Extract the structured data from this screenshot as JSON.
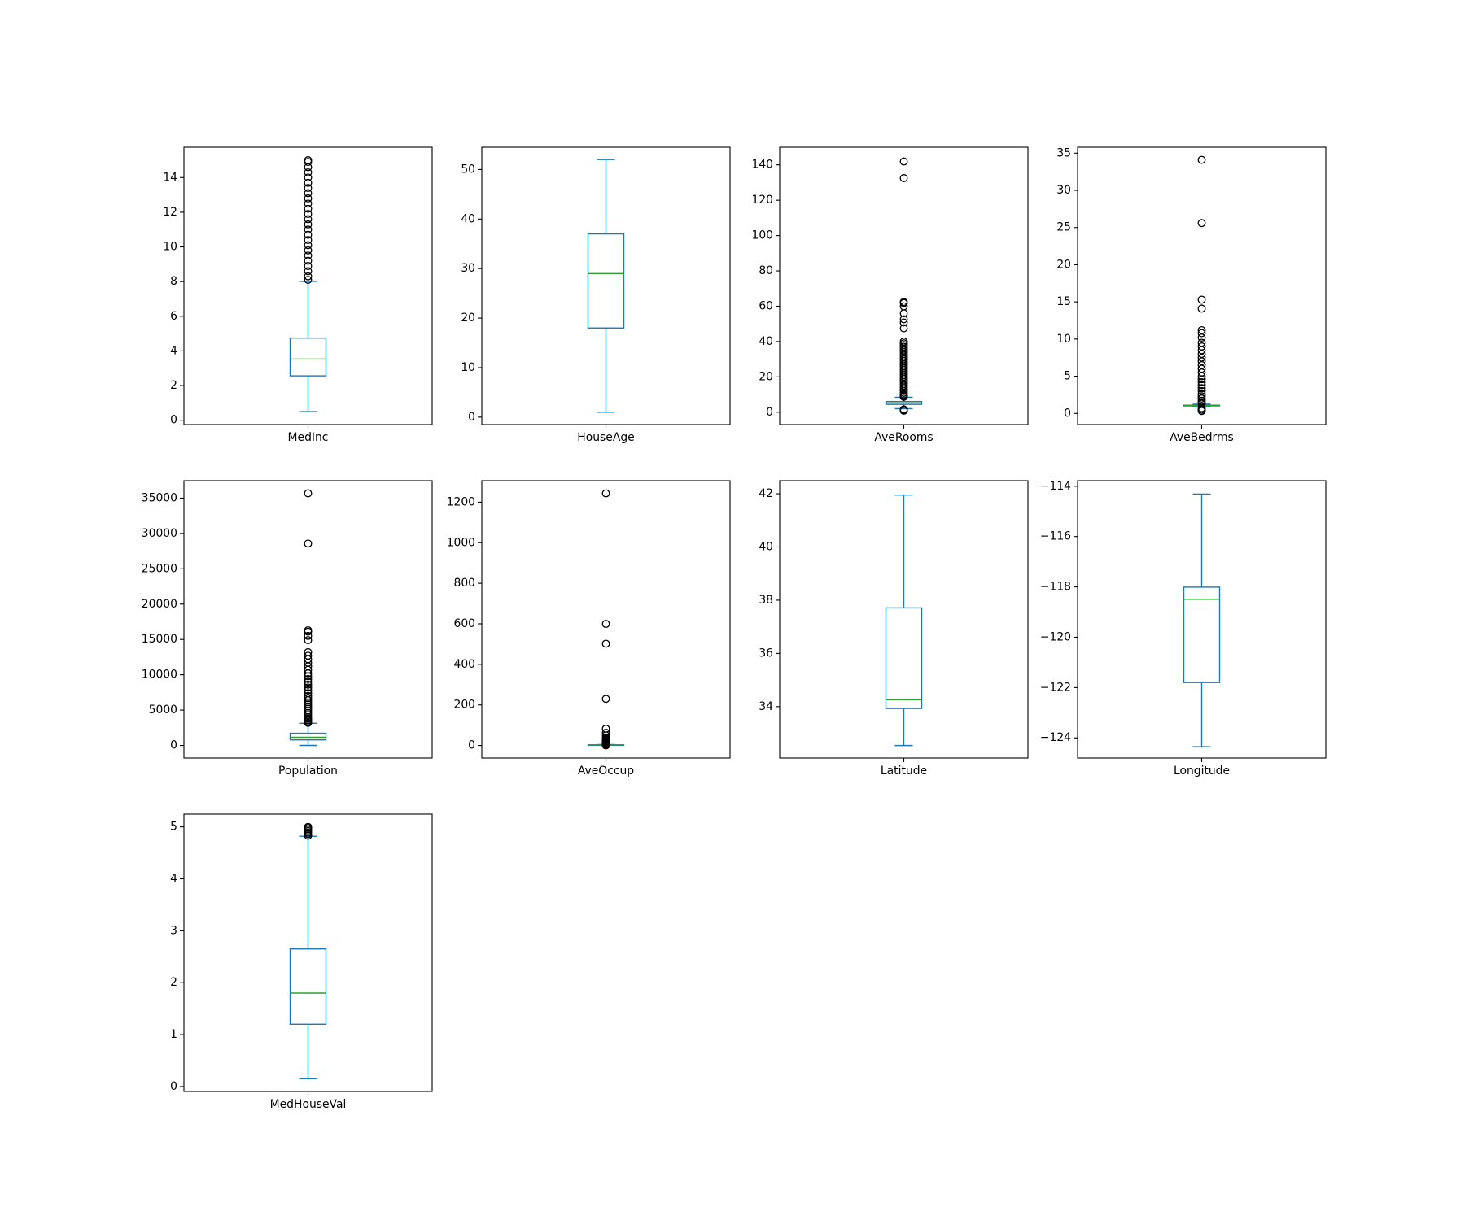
{
  "figure": {
    "background": "#ffffff"
  },
  "style": {
    "box_color": "#1f77b4",
    "median_color": "#2ca02c",
    "flier_color": "#000000"
  },
  "chart_data": [
    {
      "type": "box",
      "xlabel": "MedInc",
      "ylim": [
        -0.25,
        15.75
      ],
      "yticks": [
        0,
        2,
        4,
        6,
        8,
        10,
        12,
        14
      ],
      "yticklabels": [
        "0",
        "2",
        "4",
        "6",
        "8",
        "10",
        "12",
        "14"
      ],
      "box": {
        "whislo": 0.5,
        "q1": 2.56,
        "med": 3.53,
        "q3": 4.74,
        "whishi": 8.01
      },
      "fliers": [
        8.1,
        8.3,
        8.6,
        8.9,
        9.2,
        9.5,
        9.8,
        10.1,
        10.4,
        10.7,
        11.0,
        11.3,
        11.6,
        11.9,
        12.2,
        12.5,
        12.8,
        13.1,
        13.4,
        13.7,
        14.0,
        14.3,
        14.6,
        14.9,
        15.0
      ]
    },
    {
      "type": "box",
      "xlabel": "HouseAge",
      "ylim": [
        -1.5,
        54.5
      ],
      "yticks": [
        0,
        10,
        20,
        30,
        40,
        50
      ],
      "yticklabels": [
        "0",
        "10",
        "20",
        "30",
        "40",
        "50"
      ],
      "box": {
        "whislo": 1,
        "q1": 18,
        "med": 29,
        "q3": 37,
        "whishi": 52
      },
      "fliers": []
    },
    {
      "type": "box",
      "xlabel": "AveRooms",
      "ylim": [
        -7,
        150
      ],
      "yticks": [
        0,
        20,
        40,
        60,
        80,
        100,
        120,
        140
      ],
      "yticklabels": [
        "0",
        "20",
        "40",
        "60",
        "80",
        "100",
        "120",
        "140"
      ],
      "box": {
        "whislo": 2.0,
        "q1": 4.44,
        "med": 5.23,
        "q3": 6.05,
        "whishi": 8.45
      },
      "fliers": [
        0.85,
        1.1,
        1.3,
        1.6,
        8.7,
        9.0,
        9.5,
        10,
        11,
        12,
        13,
        14,
        15,
        16,
        17,
        18,
        19,
        20,
        21,
        22,
        23,
        24,
        25,
        26,
        27,
        28,
        29,
        30,
        31,
        32,
        33,
        34,
        35,
        36,
        37,
        38,
        39,
        40,
        47.5,
        50.8,
        52.6,
        56,
        59.9,
        61.8,
        62.4,
        132.5,
        141.9
      ]
    },
    {
      "type": "box",
      "xlabel": "AveBedrms",
      "ylim": [
        -1.5,
        35.8
      ],
      "yticks": [
        0,
        5,
        10,
        15,
        20,
        25,
        30,
        35
      ],
      "yticklabels": [
        "0",
        "5",
        "10",
        "15",
        "20",
        "25",
        "30",
        "35"
      ],
      "box": {
        "whislo": 0.87,
        "q1": 1.01,
        "med": 1.05,
        "q3": 1.1,
        "whishi": 1.24
      },
      "fliers": [
        0.33,
        0.5,
        0.7,
        1.3,
        1.5,
        1.7,
        2.0,
        2.3,
        2.6,
        3.0,
        3.4,
        3.8,
        4.2,
        4.6,
        5.0,
        5.5,
        6.0,
        6.5,
        7.0,
        7.5,
        8.0,
        8.5,
        9.0,
        9.5,
        10.2,
        10.8,
        11.2,
        14.1,
        15.3,
        25.6,
        34.1
      ]
    },
    {
      "type": "box",
      "xlabel": "Population",
      "ylim": [
        -1780,
        37465
      ],
      "yticks": [
        0,
        5000,
        10000,
        15000,
        20000,
        25000,
        30000,
        35000
      ],
      "yticklabels": [
        "0",
        "5000",
        "10000",
        "15000",
        "20000",
        "25000",
        "30000",
        "35000"
      ],
      "box": {
        "whislo": 3,
        "q1": 787,
        "med": 1166,
        "q3": 1725,
        "whishi": 3132
      },
      "fliers": [
        3200,
        3400,
        3600,
        3800,
        4000,
        4300,
        4600,
        4900,
        5200,
        5500,
        5800,
        6100,
        6400,
        6700,
        7000,
        7400,
        7800,
        8200,
        8600,
        9000,
        9400,
        9800,
        10200,
        10700,
        11200,
        11700,
        12200,
        12700,
        13200,
        14900,
        15500,
        16100,
        16300,
        28566,
        35682
      ]
    },
    {
      "type": "box",
      "xlabel": "AveOccup",
      "ylim": [
        -61.7,
        1305.8
      ],
      "yticks": [
        0,
        200,
        400,
        600,
        800,
        1000,
        1200
      ],
      "yticklabels": [
        "0",
        "200",
        "400",
        "600",
        "800",
        "1000",
        "1200"
      ],
      "box": {
        "whislo": 1.16,
        "q1": 2.43,
        "med": 2.82,
        "q3": 3.28,
        "whishi": 4.56
      },
      "fliers": [
        0.69,
        0.9,
        4.8,
        6,
        8,
        10,
        13,
        16,
        20,
        25,
        30,
        35,
        40,
        50,
        63,
        83,
        230,
        502,
        599.7,
        1243.3
      ]
    },
    {
      "type": "box",
      "xlabel": "Latitude",
      "ylim": [
        32.07,
        42.49
      ],
      "yticks": [
        34,
        36,
        38,
        40,
        42
      ],
      "yticklabels": [
        "34",
        "36",
        "38",
        "40",
        "42"
      ],
      "box": {
        "whislo": 32.54,
        "q1": 33.93,
        "med": 34.26,
        "q3": 37.71,
        "whishi": 41.95
      },
      "fliers": []
    },
    {
      "type": "box",
      "xlabel": "Longitude",
      "ylim": [
        -124.8,
        -113.78
      ],
      "yticks": [
        -124,
        -122,
        -120,
        -118,
        -116,
        -114
      ],
      "yticklabels": [
        "−124",
        "−122",
        "−120",
        "−118",
        "−116",
        "−114"
      ],
      "box": {
        "whislo": -124.35,
        "q1": -121.8,
        "med": -118.49,
        "q3": -118.01,
        "whishi": -114.31
      },
      "fliers": []
    },
    {
      "type": "box",
      "xlabel": "MedHouseVal",
      "ylim": [
        -0.095,
        5.245
      ],
      "yticks": [
        0,
        1,
        2,
        3,
        4,
        5
      ],
      "yticklabels": [
        "0",
        "1",
        "2",
        "3",
        "4",
        "5"
      ],
      "box": {
        "whislo": 0.15,
        "q1": 1.2,
        "med": 1.8,
        "q3": 2.65,
        "whishi": 4.82
      },
      "fliers": [
        4.83,
        4.86,
        4.89,
        4.92,
        4.95,
        4.98,
        5.0
      ]
    }
  ]
}
